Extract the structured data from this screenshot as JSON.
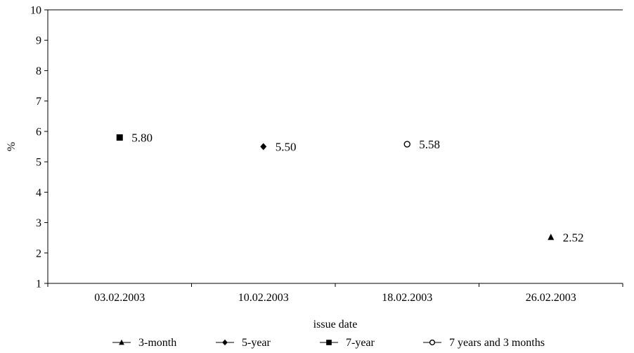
{
  "chart_data": {
    "type": "scatter",
    "title": "",
    "xlabel": "issue date",
    "ylabel": "%",
    "ylim": [
      1,
      10
    ],
    "yticks": [
      1,
      2,
      3,
      4,
      5,
      6,
      7,
      8,
      9,
      10
    ],
    "categories": [
      "03.02.2003",
      "10.02.2003",
      "18.02.2003",
      "26.02.2003"
    ],
    "grid": false,
    "legend_position": "bottom",
    "series": [
      {
        "name": "3-month",
        "marker": "triangle",
        "points": [
          {
            "x": "26.02.2003",
            "y": 2.52,
            "label": "2.52"
          }
        ]
      },
      {
        "name": "5-year",
        "marker": "diamond",
        "points": [
          {
            "x": "10.02.2003",
            "y": 5.5,
            "label": "5.50"
          }
        ]
      },
      {
        "name": "7-year",
        "marker": "square",
        "points": [
          {
            "x": "03.02.2003",
            "y": 5.8,
            "label": "5.80"
          }
        ]
      },
      {
        "name": "7 years and 3 months",
        "marker": "circle-open",
        "points": [
          {
            "x": "18.02.2003",
            "y": 5.58,
            "label": "5.58"
          }
        ]
      }
    ]
  }
}
